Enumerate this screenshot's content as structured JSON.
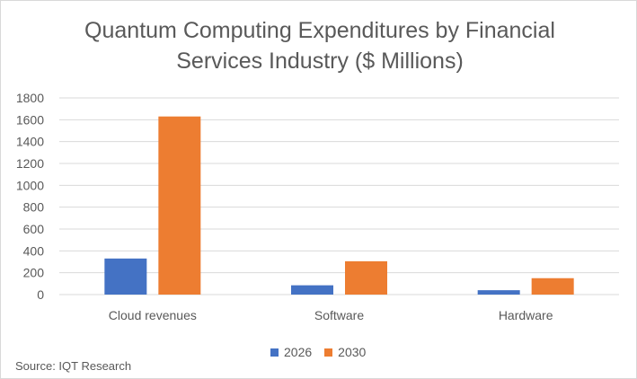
{
  "chart_data": {
    "type": "bar",
    "title_lines": [
      "Quantum Computing Expenditures by Financial",
      "Services Industry ($ Millions)"
    ],
    "categories": [
      "Cloud revenues",
      "Software",
      "Hardware"
    ],
    "series": [
      {
        "name": "2026",
        "color": "#4472c4",
        "values": [
          330,
          85,
          40
        ]
      },
      {
        "name": "2030",
        "color": "#ed7d31",
        "values": [
          1630,
          305,
          150
        ]
      }
    ],
    "ylim": [
      0,
      1800
    ],
    "yticks": [
      0,
      200,
      400,
      600,
      800,
      1000,
      1200,
      1400,
      1600,
      1800
    ],
    "grid": true,
    "legend_position": "bottom"
  },
  "source": "Source:  IQT Research"
}
